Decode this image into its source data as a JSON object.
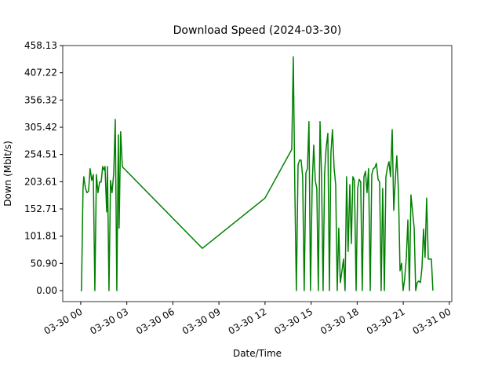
{
  "chart_data": {
    "type": "line",
    "title": "Download Speed (2024-03-30)",
    "x_label": "Date/Time",
    "y_label": "Down (Mbit/s)",
    "xlim": [
      -1.17,
      24.16
    ],
    "xticks": [
      {
        "value": 0,
        "label": "03-30 00"
      },
      {
        "value": 3,
        "label": "03-30 03"
      },
      {
        "value": 6,
        "label": "03-30 06"
      },
      {
        "value": 9,
        "label": "03-30 09"
      },
      {
        "value": 12,
        "label": "03-30 12"
      },
      {
        "value": 15,
        "label": "03-30 15"
      },
      {
        "value": 18,
        "label": "03-30 18"
      },
      {
        "value": 21,
        "label": "03-30 21"
      },
      {
        "value": 24,
        "label": "03-31 00"
      }
    ],
    "ylim": [
      -20.56,
      458.13
    ],
    "yticks": [
      {
        "value": 0,
        "label": "0.00"
      },
      {
        "value": 50.9,
        "label": "50.90"
      },
      {
        "value": 101.81,
        "label": "101.81"
      },
      {
        "value": 152.71,
        "label": "152.71"
      },
      {
        "value": 203.61,
        "label": "203.61"
      },
      {
        "value": 254.51,
        "label": "254.51"
      },
      {
        "value": 305.42,
        "label": "305.42"
      },
      {
        "value": 356.32,
        "label": "356.32"
      },
      {
        "value": 407.22,
        "label": "407.22"
      },
      {
        "value": 458.13,
        "label": "458.13"
      }
    ],
    "grid": false,
    "series": [
      {
        "color": "#008000",
        "x": [
          0.0,
          0.05,
          0.15,
          0.2,
          0.31,
          0.41,
          0.51,
          0.61,
          0.72,
          0.82,
          0.92,
          1.02,
          1.12,
          1.23,
          1.33,
          1.43,
          1.53,
          1.58,
          1.69,
          1.74,
          1.84,
          1.94,
          2.04,
          2.15,
          2.25,
          2.35,
          2.45,
          2.5,
          2.6,
          2.71,
          2.76,
          7.92,
          12.0,
          13.74,
          13.84,
          13.94,
          14.04,
          14.15,
          14.25,
          14.35,
          14.45,
          14.55,
          14.66,
          14.76,
          14.86,
          14.96,
          15.07,
          15.17,
          15.27,
          15.37,
          15.47,
          15.58,
          15.68,
          15.78,
          15.88,
          15.98,
          16.09,
          16.19,
          16.29,
          16.39,
          16.5,
          16.6,
          16.7,
          16.8,
          16.9,
          17.01,
          17.11,
          17.21,
          17.31,
          17.41,
          17.52,
          17.62,
          17.72,
          17.82,
          17.93,
          18.03,
          18.13,
          18.23,
          18.33,
          18.44,
          18.54,
          18.64,
          18.74,
          18.85,
          18.95,
          19.05,
          19.15,
          19.25,
          19.36,
          19.46,
          19.56,
          19.66,
          19.77,
          19.87,
          19.97,
          20.07,
          20.17,
          20.28,
          20.38,
          20.48,
          20.58,
          20.69,
          20.79,
          20.89,
          20.99,
          21.09,
          21.2,
          21.3,
          21.4,
          21.5,
          21.61,
          21.71,
          21.81,
          21.91,
          22.01,
          22.12,
          22.22,
          22.32,
          22.42,
          22.52,
          22.63,
          22.73,
          22.83,
          22.93
        ],
        "values": [
          0,
          0,
          191,
          213,
          191,
          183,
          186,
          228,
          206,
          217,
          0,
          217,
          183,
          203,
          203,
          232,
          225,
          232,
          147,
          232,
          0,
          206,
          183,
          220,
          320,
          0,
          291,
          117,
          297,
          232,
          230,
          79,
          173,
          264,
          437,
          191,
          0,
          235,
          244,
          244,
          213,
          0,
          220,
          228,
          316,
          0,
          198,
          272,
          206,
          191,
          0,
          316,
          213,
          0,
          220,
          267,
          294,
          0,
          257,
          301,
          228,
          198,
          0,
          117,
          15,
          37,
          59,
          0,
          213,
          73,
          198,
          88,
          213,
          206,
          0,
          191,
          208,
          203,
          0,
          213,
          223,
          183,
          228,
          0,
          217,
          228,
          230,
          238,
          208,
          203,
          0,
          191,
          0,
          213,
          230,
          241,
          213,
          301,
          150,
          206,
          252,
          183,
          37,
          51,
          0,
          22,
          62,
          132,
          0,
          179,
          147,
          117,
          0,
          15,
          18,
          15,
          44,
          115,
          62,
          173,
          59,
          59,
          59,
          0
        ]
      }
    ]
  }
}
